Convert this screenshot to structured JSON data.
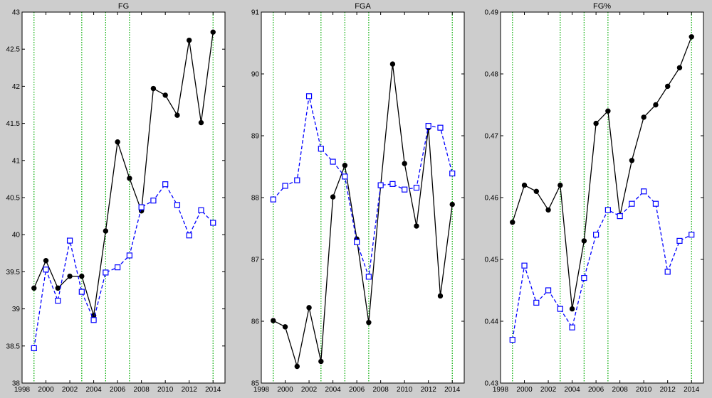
{
  "figure": {
    "background": "#cdcdcd",
    "plot_background": "#ffffff",
    "series_colors": {
      "black": "#000000",
      "blue": "#0000ff",
      "vline": "#00aa00"
    }
  },
  "chart_data": [
    {
      "type": "line",
      "title": "FG",
      "xlabel": "",
      "ylabel": "",
      "xlim": [
        1998,
        2015
      ],
      "ylim": [
        38,
        43
      ],
      "xticks": [
        1998,
        2000,
        2002,
        2004,
        2006,
        2008,
        2010,
        2012,
        2014
      ],
      "yticks": [
        38,
        38.5,
        39,
        39.5,
        40,
        40.5,
        41,
        41.5,
        42,
        42.5,
        43
      ],
      "vlines": [
        1999,
        2003,
        2005,
        2007,
        2014
      ],
      "grid": false,
      "series": [
        {
          "style": "solid-circle",
          "color": "#000000",
          "x": [
            1999,
            2000,
            2001,
            2002,
            2003,
            2004,
            2005,
            2006,
            2007,
            2008,
            2009,
            2010,
            2011,
            2012,
            2013,
            2014
          ],
          "y": [
            39.28,
            39.65,
            39.28,
            39.44,
            39.44,
            38.91,
            40.05,
            41.25,
            40.76,
            40.32,
            41.97,
            41.88,
            41.61,
            42.62,
            41.51,
            42.73
          ]
        },
        {
          "style": "dashed-square",
          "color": "#0000ff",
          "x": [
            1999,
            2000,
            2001,
            2002,
            2003,
            2004,
            2005,
            2006,
            2007,
            2008,
            2009,
            2010,
            2011,
            2012,
            2013,
            2014
          ],
          "y": [
            38.47,
            39.53,
            39.11,
            39.92,
            39.23,
            38.85,
            39.49,
            39.56,
            39.72,
            40.37,
            40.46,
            40.68,
            40.4,
            39.99,
            40.33,
            40.16
          ]
        }
      ]
    },
    {
      "type": "line",
      "title": "FGA",
      "xlabel": "",
      "ylabel": "",
      "xlim": [
        1998,
        2015
      ],
      "ylim": [
        85,
        91
      ],
      "xticks": [
        1998,
        2000,
        2002,
        2004,
        2006,
        2008,
        2010,
        2012,
        2014
      ],
      "yticks": [
        85,
        86,
        87,
        88,
        89,
        90,
        91
      ],
      "vlines": [
        1999,
        2003,
        2005,
        2007,
        2014
      ],
      "grid": false,
      "series": [
        {
          "style": "solid-circle",
          "color": "#000000",
          "x": [
            1999,
            2000,
            2001,
            2002,
            2003,
            2004,
            2005,
            2006,
            2007,
            2008,
            2009,
            2010,
            2011,
            2012,
            2013,
            2014
          ],
          "y": [
            86.01,
            85.91,
            85.27,
            86.22,
            85.35,
            88.01,
            88.52,
            87.33,
            85.98,
            88.19,
            90.16,
            88.55,
            87.54,
            89.13,
            86.41,
            87.89
          ]
        },
        {
          "style": "dashed-square",
          "color": "#0000ff",
          "x": [
            1999,
            2000,
            2001,
            2002,
            2003,
            2004,
            2005,
            2006,
            2007,
            2008,
            2009,
            2010,
            2011,
            2012,
            2013,
            2014
          ],
          "y": [
            87.97,
            88.19,
            88.28,
            89.64,
            88.79,
            88.58,
            88.34,
            87.28,
            86.72,
            88.2,
            88.22,
            88.13,
            88.16,
            89.16,
            89.13,
            88.39
          ]
        }
      ]
    },
    {
      "type": "line",
      "title": "FG%",
      "xlabel": "",
      "ylabel": "",
      "xlim": [
        1998,
        2015
      ],
      "ylim": [
        0.43,
        0.49
      ],
      "xticks": [
        1998,
        2000,
        2002,
        2004,
        2006,
        2008,
        2010,
        2012,
        2014
      ],
      "yticks": [
        0.43,
        0.44,
        0.45,
        0.46,
        0.47,
        0.48,
        0.49
      ],
      "vlines": [
        1999,
        2003,
        2005,
        2007,
        2014
      ],
      "grid": false,
      "series": [
        {
          "style": "solid-circle",
          "color": "#000000",
          "x": [
            1999,
            2000,
            2001,
            2002,
            2003,
            2004,
            2005,
            2006,
            2007,
            2008,
            2009,
            2010,
            2011,
            2012,
            2013,
            2014
          ],
          "y": [
            0.456,
            0.462,
            0.461,
            0.458,
            0.462,
            0.442,
            0.453,
            0.472,
            0.474,
            0.457,
            0.466,
            0.473,
            0.475,
            0.478,
            0.481,
            0.486
          ]
        },
        {
          "style": "dashed-square",
          "color": "#0000ff",
          "x": [
            1999,
            2000,
            2001,
            2002,
            2003,
            2004,
            2005,
            2006,
            2007,
            2008,
            2009,
            2010,
            2011,
            2012,
            2013,
            2014
          ],
          "y": [
            0.437,
            0.449,
            0.443,
            0.445,
            0.442,
            0.439,
            0.447,
            0.454,
            0.458,
            0.457,
            0.459,
            0.461,
            0.459,
            0.448,
            0.453,
            0.454
          ]
        }
      ]
    }
  ]
}
